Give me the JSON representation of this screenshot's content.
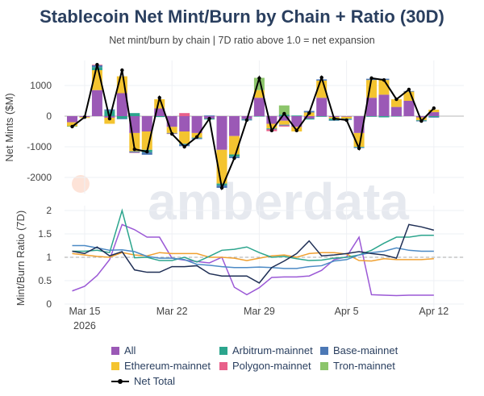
{
  "title": "Stablecoin Net Mint/Burn by Chain + Ratio (30D)",
  "subtitle": "Net mint/burn by chain | 7D ratio above 1.0 = net expansion",
  "watermark": "amberdata",
  "chart_data": [
    {
      "type": "bar",
      "stacked": true,
      "ylabel": "Net Mints ($M)",
      "yticks": [
        -2000,
        -1000,
        0,
        1000
      ],
      "ylim": [
        -2550,
        1800
      ],
      "grid": true,
      "dates": [
        "2026-03-14",
        "2026-03-15",
        "2026-03-16",
        "2026-03-17",
        "2026-03-18",
        "2026-03-19",
        "2026-03-20",
        "2026-03-21",
        "2026-03-22",
        "2026-03-23",
        "2026-03-24",
        "2026-03-25",
        "2026-03-26",
        "2026-03-27",
        "2026-03-28",
        "2026-03-29",
        "2026-03-30",
        "2026-03-31",
        "2026-04-01",
        "2026-04-02",
        "2026-04-03",
        "2026-04-04",
        "2026-04-05",
        "2026-04-06",
        "2026-04-07",
        "2026-04-08",
        "2026-04-09",
        "2026-04-10",
        "2026-04-11",
        "2026-04-12"
      ],
      "series": [
        {
          "name": "All",
          "color": "#9b59b6",
          "values": [
            -200,
            -30,
            850,
            -50,
            750,
            -550,
            -500,
            250,
            -350,
            -500,
            -550,
            -80,
            -1100,
            -650,
            -100,
            600,
            -250,
            -150,
            -350,
            -80,
            600,
            -30,
            -20,
            -550,
            600,
            700,
            300,
            500,
            -40,
            130
          ]
        },
        {
          "name": "Ethereum-mainnet",
          "color": "#f4c430",
          "values": [
            -130,
            -30,
            650,
            -200,
            550,
            -600,
            -600,
            300,
            -200,
            -400,
            -150,
            0,
            -1100,
            -600,
            0,
            250,
            -150,
            -130,
            -150,
            120,
            560,
            -50,
            -60,
            -450,
            580,
            480,
            250,
            300,
            -90,
            80
          ]
        },
        {
          "name": "Arbitrum-mainnet",
          "color": "#2ca58d",
          "values": [
            -10,
            0,
            100,
            180,
            -80,
            100,
            -80,
            -30,
            -10,
            -20,
            -20,
            -30,
            -60,
            -70,
            -20,
            -10,
            -20,
            50,
            20,
            -30,
            -20,
            -60,
            -20,
            -20,
            -20,
            -40,
            -10,
            0,
            -20,
            -30
          ]
        },
        {
          "name": "Base-mainnet",
          "color": "#4c78b5",
          "values": [
            0,
            0,
            60,
            40,
            -20,
            -40,
            -80,
            0,
            -10,
            -60,
            -30,
            20,
            -80,
            -50,
            -20,
            0,
            -10,
            -30,
            0,
            50,
            40,
            -10,
            -20,
            -20,
            40,
            40,
            0,
            20,
            -20,
            -20
          ]
        },
        {
          "name": "Polygon-mainnet",
          "color": "#e8608a",
          "values": [
            0,
            0,
            20,
            0,
            0,
            -10,
            0,
            0,
            -10,
            100,
            0,
            0,
            0,
            0,
            0,
            0,
            -60,
            -30,
            0,
            0,
            0,
            0,
            0,
            0,
            0,
            0,
            0,
            0,
            0,
            0
          ]
        },
        {
          "name": "Tron-mainnet",
          "color": "#8cc56b",
          "values": [
            0,
            0,
            0,
            0,
            0,
            0,
            0,
            0,
            0,
            0,
            0,
            0,
            0,
            0,
            0,
            400,
            0,
            300,
            0,
            0,
            0,
            0,
            0,
            0,
            0,
            0,
            0,
            0,
            0,
            0
          ]
        }
      ],
      "net_total": {
        "name": "Net Total",
        "color": "#000000",
        "values": [
          -340,
          -30,
          1680,
          -80,
          1500,
          -1080,
          -1160,
          600,
          -580,
          -1000,
          -680,
          -80,
          -2340,
          -1370,
          -130,
          1240,
          -470,
          80,
          -470,
          100,
          1260,
          -80,
          -130,
          -1050,
          1240,
          1180,
          550,
          870,
          -160,
          260
        ]
      }
    },
    {
      "type": "line",
      "ylabel": "Mint/Burn Ratio (7D)",
      "yticks": [
        0,
        0.5,
        1,
        1.5,
        2
      ],
      "ylim": [
        0,
        2.05
      ],
      "reference_line": 1.0,
      "xticks": [
        {
          "date": "2026-03-15",
          "label": "Mar 15",
          "sub": "2026"
        },
        {
          "date": "2026-03-22",
          "label": "Mar 22"
        },
        {
          "date": "2026-03-29",
          "label": "Mar 29"
        },
        {
          "date": "2026-04-05",
          "label": "Apr 5"
        },
        {
          "date": "2026-04-12",
          "label": "Apr 12"
        }
      ],
      "series": [
        {
          "name": "All",
          "color": "#9b59d6",
          "values": [
            0.28,
            0.38,
            0.61,
            0.95,
            1.7,
            1.59,
            1.43,
            1.43,
            0.98,
            0.94,
            0.91,
            0.88,
            1.0,
            0.36,
            0.2,
            0.35,
            0.57,
            0.58,
            0.58,
            0.6,
            0.72,
            0.95,
            1.01,
            1.43,
            0.2,
            0.19,
            0.18,
            0.19,
            0.19,
            0.19
          ]
        },
        {
          "name": "Ethereum-mainnet",
          "color": "#f0a030",
          "values": [
            1.08,
            1.05,
            1.02,
            1.0,
            1.1,
            1.05,
            1.03,
            1.1,
            1.08,
            1.08,
            1.08,
            1.0,
            1.0,
            0.98,
            0.93,
            0.98,
            1.03,
            1.05,
            1.0,
            1.08,
            1.1,
            1.1,
            1.07,
            0.93,
            0.92,
            0.97,
            0.95,
            0.95,
            0.95,
            0.97
          ]
        },
        {
          "name": "Arbitrum-mainnet",
          "color": "#2ca58d",
          "values": [
            1.13,
            1.13,
            1.15,
            1.1,
            2.0,
            0.99,
            1.0,
            0.93,
            0.93,
            1.0,
            0.9,
            1.02,
            1.15,
            1.17,
            1.22,
            1.1,
            1.0,
            1.02,
            0.97,
            0.93,
            0.94,
            0.98,
            1.0,
            1.05,
            1.15,
            1.3,
            1.43,
            1.43,
            1.47,
            1.47
          ]
        },
        {
          "name": "Base-mainnet",
          "color": "#4c8ac5",
          "values": [
            1.25,
            1.25,
            1.2,
            1.15,
            1.16,
            1.12,
            1.02,
            0.98,
            0.98,
            0.95,
            0.85,
            0.83,
            0.8,
            0.78,
            0.78,
            0.79,
            0.78,
            0.76,
            0.76,
            0.8,
            0.82,
            0.92,
            0.95,
            1.05,
            1.1,
            1.13,
            1.2,
            1.15,
            1.13,
            1.13
          ]
        },
        {
          "name": "Net Total",
          "color": "#1f2f55",
          "values": [
            1.13,
            1.08,
            1.22,
            1.03,
            1.12,
            0.73,
            0.68,
            0.68,
            0.8,
            0.8,
            0.82,
            0.65,
            0.6,
            0.6,
            0.6,
            0.45,
            0.78,
            0.92,
            1.08,
            1.35,
            1.03,
            1.05,
            1.08,
            1.12,
            1.08,
            1.05,
            0.98,
            1.7,
            1.65,
            1.58
          ]
        }
      ]
    }
  ],
  "legend": [
    {
      "label": "All",
      "color": "#9b59b6",
      "kind": "square"
    },
    {
      "label": "Arbitrum-mainnet",
      "color": "#2ca58d",
      "kind": "square"
    },
    {
      "label": "Base-mainnet",
      "color": "#4c78b5",
      "kind": "square"
    },
    {
      "label": "Ethereum-mainnet",
      "color": "#f4c430",
      "kind": "square"
    },
    {
      "label": "Polygon-mainnet",
      "color": "#e8608a",
      "kind": "square"
    },
    {
      "label": "Tron-mainnet",
      "color": "#8cc56b",
      "kind": "square"
    },
    {
      "label": "Net Total",
      "color": "#000000",
      "kind": "line"
    }
  ]
}
